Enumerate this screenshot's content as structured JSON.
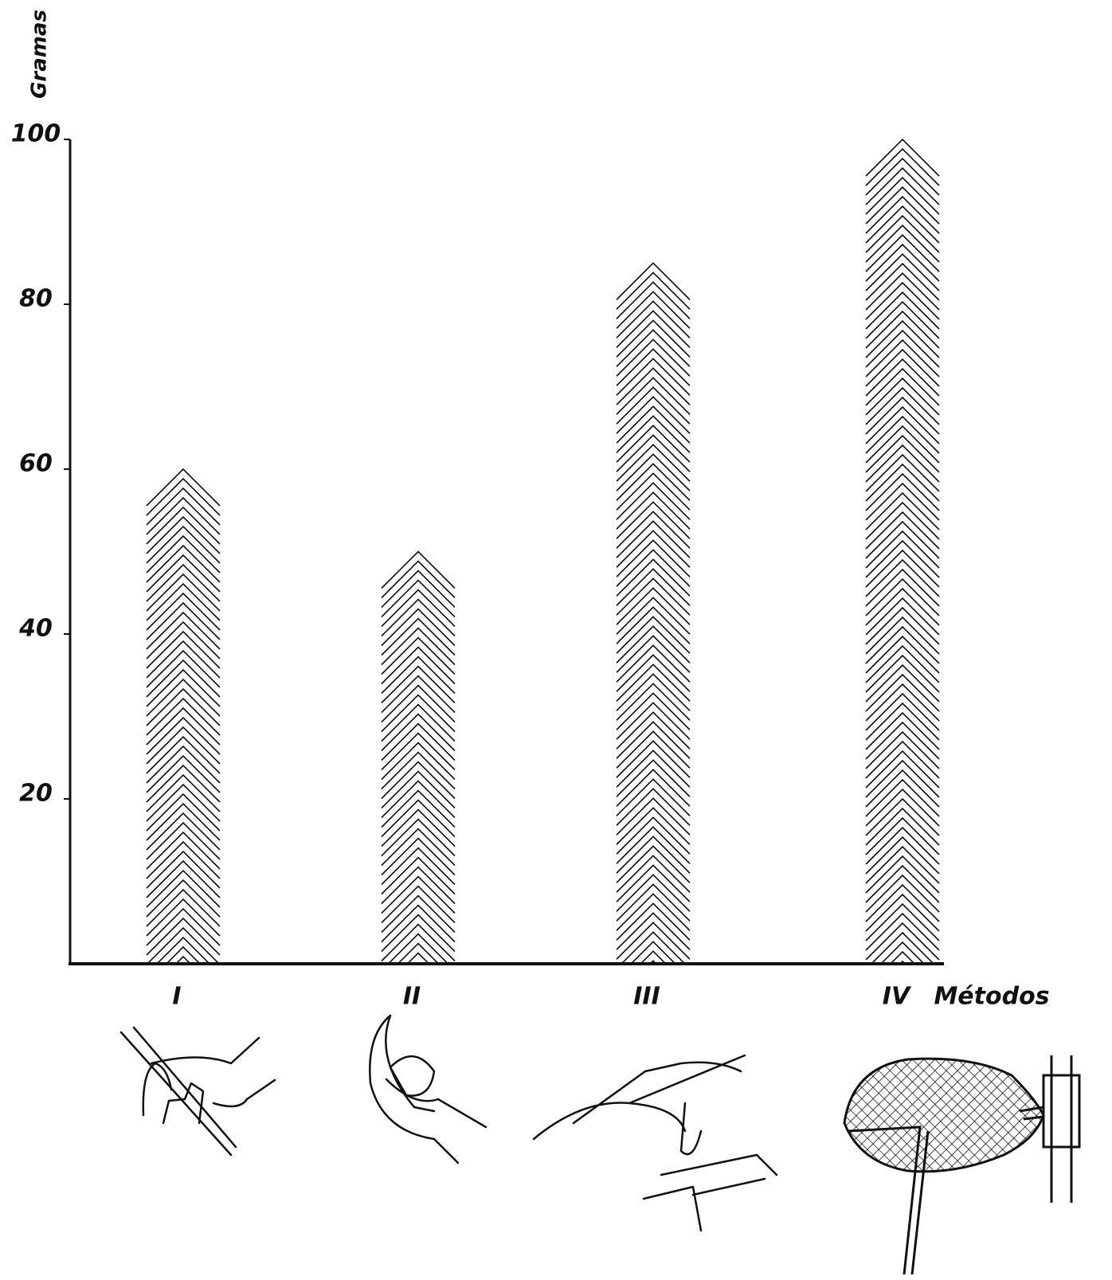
{
  "chart_data": {
    "type": "bar",
    "y_label": "Gramas",
    "x_label": "Métodos",
    "categories": [
      "I",
      "II",
      "III",
      "IV"
    ],
    "values": [
      60,
      50,
      85,
      100
    ],
    "color": "#111111",
    "ylim": [
      0,
      100
    ],
    "yticks": [
      20,
      40,
      60,
      80,
      100
    ],
    "grid": false
  }
}
